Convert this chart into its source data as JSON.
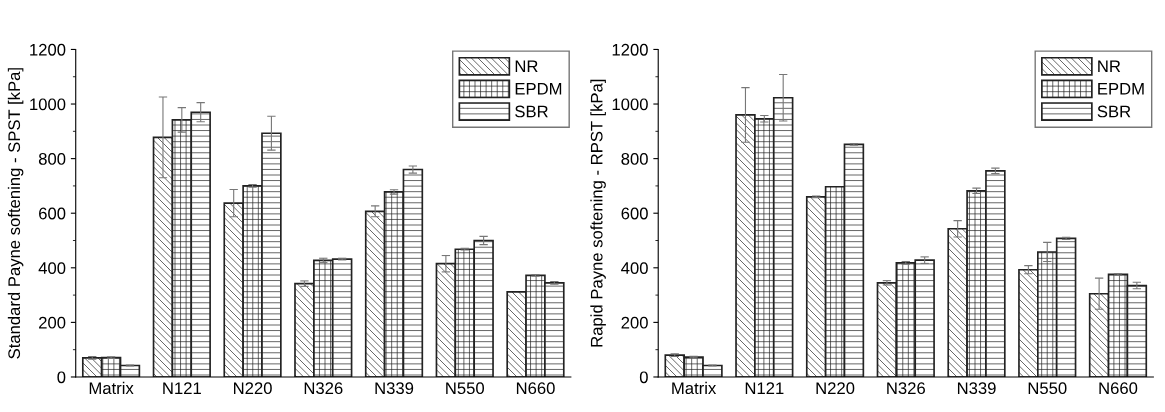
{
  "chart_data": [
    {
      "type": "bar",
      "ylabel": "Standard Payne softening - SPST [kPa]",
      "categories": [
        "Matrix",
        "N121",
        "N220",
        "N326",
        "N339",
        "N550",
        "N660"
      ],
      "ylim": [
        0,
        1200
      ],
      "yticks": [
        0,
        200,
        400,
        600,
        800,
        1000,
        1200
      ],
      "legend": "top right",
      "grid": false,
      "series": [
        {
          "name": "NR",
          "color": "#222222",
          "values": [
            70,
            878,
            637,
            342,
            607,
            415,
            312
          ],
          "errors": [
            5,
            148,
            50,
            10,
            20,
            30,
            null
          ]
        },
        {
          "name": "EPDM",
          "color": "#222222",
          "values": [
            71,
            942,
            700,
            427,
            678,
            468,
            372
          ],
          "errors": [
            3,
            45,
            5,
            8,
            8,
            3,
            3
          ]
        },
        {
          "name": "SBR",
          "color": "#222222",
          "values": [
            42,
            970,
            893,
            432,
            760,
            500,
            345
          ],
          "errors": [
            2,
            35,
            62,
            3,
            13,
            15,
            5
          ]
        }
      ]
    },
    {
      "type": "bar",
      "ylabel": "Rapid Payne softening - RPST [kPa]",
      "categories": [
        "Matrix",
        "N121",
        "N220",
        "N326",
        "N339",
        "N550",
        "N660"
      ],
      "ylim": [
        0,
        1200
      ],
      "yticks": [
        0,
        200,
        400,
        600,
        800,
        1000,
        1200
      ],
      "legend": "top right",
      "grid": false,
      "series": [
        {
          "name": "NR",
          "color": "#222222",
          "values": [
            80,
            960,
            660,
            345,
            543,
            393,
            305
          ],
          "errors": [
            5,
            100,
            3,
            8,
            30,
            15,
            57
          ]
        },
        {
          "name": "EPDM",
          "color": "#222222",
          "values": [
            73,
            946,
            697,
            418,
            682,
            458,
            376
          ],
          "errors": [
            3,
            12,
            null,
            5,
            10,
            35,
            3
          ]
        },
        {
          "name": "SBR",
          "color": "#222222",
          "values": [
            42,
            1023,
            852,
            428,
            755,
            508,
            335
          ],
          "errors": [
            2,
            85,
            3,
            12,
            10,
            4,
            12
          ]
        }
      ]
    }
  ]
}
